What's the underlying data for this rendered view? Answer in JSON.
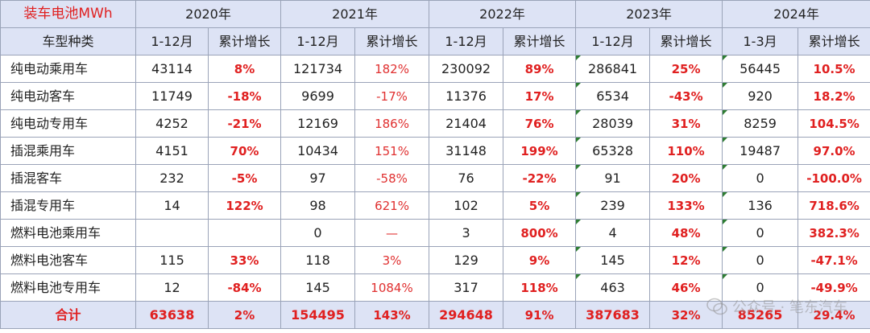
{
  "title": "装车电池MWh",
  "row_header": "车型种类",
  "years": [
    "2020年",
    "2021年",
    "2022年",
    "2023年",
    "2024年"
  ],
  "sub_headers": [
    [
      "1-12月",
      "累计增长"
    ],
    [
      "1-12月",
      "累计增长"
    ],
    [
      "1-12月",
      "累计增长"
    ],
    [
      "1-12月",
      "累计增长"
    ],
    [
      "1-3月",
      "累计增长"
    ]
  ],
  "rows": [
    {
      "type": "纯电动乘用车",
      "cells": [
        "43114",
        "8%",
        "121734",
        "182%",
        "230092",
        "89%",
        "286841",
        "25%",
        "56445",
        "10.5%"
      ]
    },
    {
      "type": "纯电动客车",
      "cells": [
        "11749",
        "-18%",
        "9699",
        "-17%",
        "11376",
        "17%",
        "6534",
        "-43%",
        "920",
        "18.2%"
      ]
    },
    {
      "type": "纯电动专用车",
      "cells": [
        "4252",
        "-21%",
        "12169",
        "186%",
        "21404",
        "76%",
        "28039",
        "31%",
        "8259",
        "104.5%"
      ]
    },
    {
      "type": "插混乘用车",
      "cells": [
        "4151",
        "70%",
        "10434",
        "151%",
        "31148",
        "199%",
        "65328",
        "110%",
        "19487",
        "97.0%"
      ]
    },
    {
      "type": "插混客车",
      "cells": [
        "232",
        "-5%",
        "97",
        "-58%",
        "76",
        "-22%",
        "91",
        "20%",
        "0",
        "-100.0%"
      ]
    },
    {
      "type": "插混专用车",
      "cells": [
        "14",
        "122%",
        "98",
        "621%",
        "102",
        "5%",
        "239",
        "133%",
        "136",
        "718.6%"
      ]
    },
    {
      "type": "燃料电池乘用车",
      "cells": [
        "",
        "",
        "0",
        "—",
        "3",
        "800%",
        "4",
        "48%",
        "0",
        "382.3%"
      ]
    },
    {
      "type": "燃料电池客车",
      "cells": [
        "115",
        "33%",
        "118",
        "3%",
        "129",
        "9%",
        "145",
        "12%",
        "0",
        "-47.1%"
      ]
    },
    {
      "type": "燃料电池专用车",
      "cells": [
        "12",
        "-84%",
        "145",
        "1084%",
        "317",
        "118%",
        "463",
        "46%",
        "0",
        "-49.9%"
      ]
    }
  ],
  "total": {
    "label": "合计",
    "cells": [
      "63638",
      "2%",
      "154495",
      "143%",
      "294648",
      "91%",
      "387683",
      "32%",
      "85265",
      "29.4%"
    ]
  },
  "watermark": {
    "text": "公众号 · 笔东汽车"
  },
  "colors": {
    "header_bg": "#dde3f5",
    "accent_red": "#e02020",
    "border": "#9aa3b8",
    "marker_green": "#2e7d32"
  }
}
